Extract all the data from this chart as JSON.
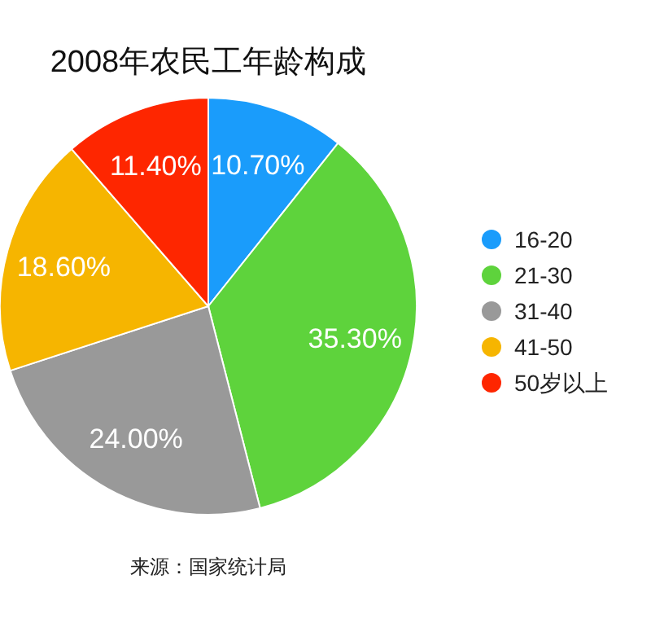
{
  "chart_data": {
    "type": "pie",
    "title": "2008年农民工年龄构成",
    "categories": [
      "16-20",
      "21-30",
      "31-40",
      "41-50",
      "50岁以上"
    ],
    "values": [
      10.7,
      35.3,
      24.0,
      18.6,
      11.4
    ],
    "colors": [
      "#1a9cfb",
      "#5ed33c",
      "#999999",
      "#f6b500",
      "#fe2600"
    ],
    "value_labels": [
      "10.70%",
      "35.30%",
      "24.00%",
      "18.60%",
      "11.40%"
    ],
    "legend": "right",
    "annotations": [
      "来源：国家统计局"
    ]
  }
}
